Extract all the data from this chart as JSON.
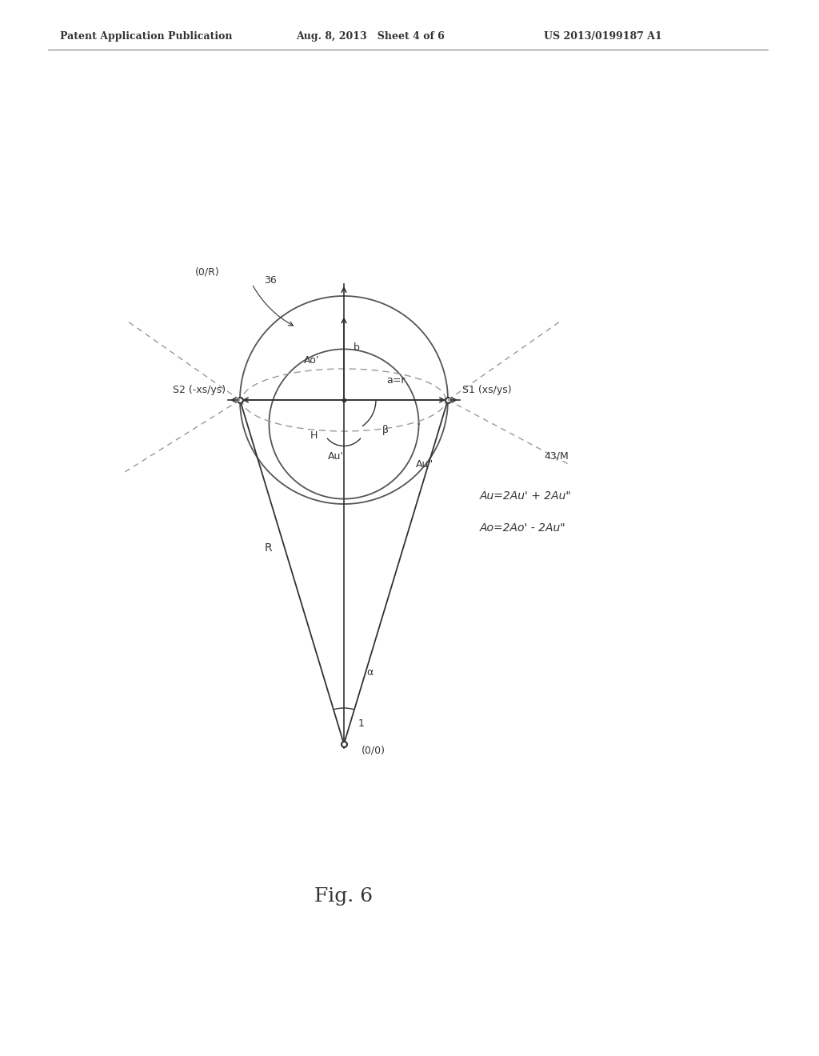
{
  "bg_color": "#ffffff",
  "line_color": "#555555",
  "dark_color": "#333333",
  "dashed_color": "#999999",
  "header_left": "Patent Application Publication",
  "header_mid": "Aug. 8, 2013   Sheet 4 of 6",
  "header_right": "US 2013/0199187 A1",
  "fig_label": "Fig. 6",
  "label_fontsize": 10,
  "small_fontsize": 9,
  "annotation_Au_eq": "Au=2Au' + 2Au\"",
  "annotation_Ao_eq": "Ao=2Ao' - 2Au\""
}
